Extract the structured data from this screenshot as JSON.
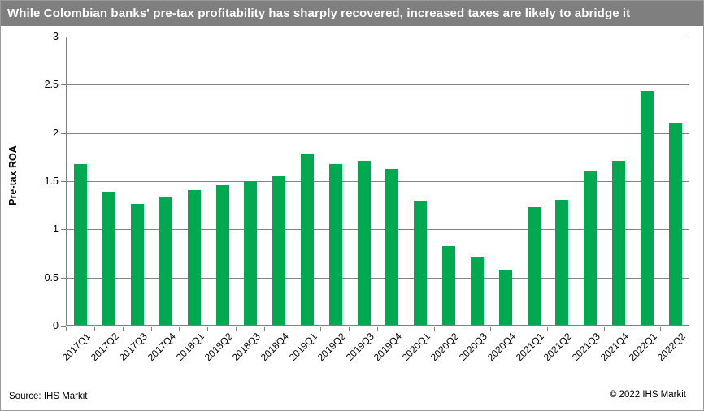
{
  "header": {
    "title": "While Colombian banks' pre-tax profitability has sharply recovered, increased taxes are likely to abridge it",
    "bg_color": "#7F7F7F",
    "text_color": "#FFFFFF"
  },
  "footer": {
    "source": "Source: IHS Markit",
    "copyright": "© 2022  IHS Markit"
  },
  "chart_data": {
    "type": "bar",
    "title": "",
    "xlabel": "",
    "ylabel": "Pre-tax ROA",
    "ylim": [
      0,
      3
    ],
    "yticks": [
      0,
      0.5,
      1,
      1.5,
      2,
      2.5,
      3
    ],
    "ytick_labels": [
      "0",
      "0.5",
      "1",
      "1.5",
      "2",
      "2.5",
      "3"
    ],
    "grid": true,
    "legend": "none",
    "bar_color": "#00A84F",
    "categories": [
      "2017Q1",
      "2017Q2",
      "2017Q3",
      "2017Q4",
      "2018Q1",
      "2018Q2",
      "2018Q3",
      "2018Q4",
      "2019Q1",
      "2019Q2",
      "2019Q3",
      "2019Q4",
      "2020Q1",
      "2020Q2",
      "2020Q3",
      "2020Q4",
      "2021Q1",
      "2021Q2",
      "2021Q3",
      "2021Q4",
      "2022Q1",
      "2022Q2"
    ],
    "values": [
      1.67,
      1.38,
      1.26,
      1.33,
      1.4,
      1.45,
      1.49,
      1.54,
      1.78,
      1.67,
      1.7,
      1.62,
      1.29,
      0.82,
      0.7,
      0.57,
      1.22,
      1.3,
      1.6,
      1.7,
      2.43,
      2.09
    ]
  }
}
